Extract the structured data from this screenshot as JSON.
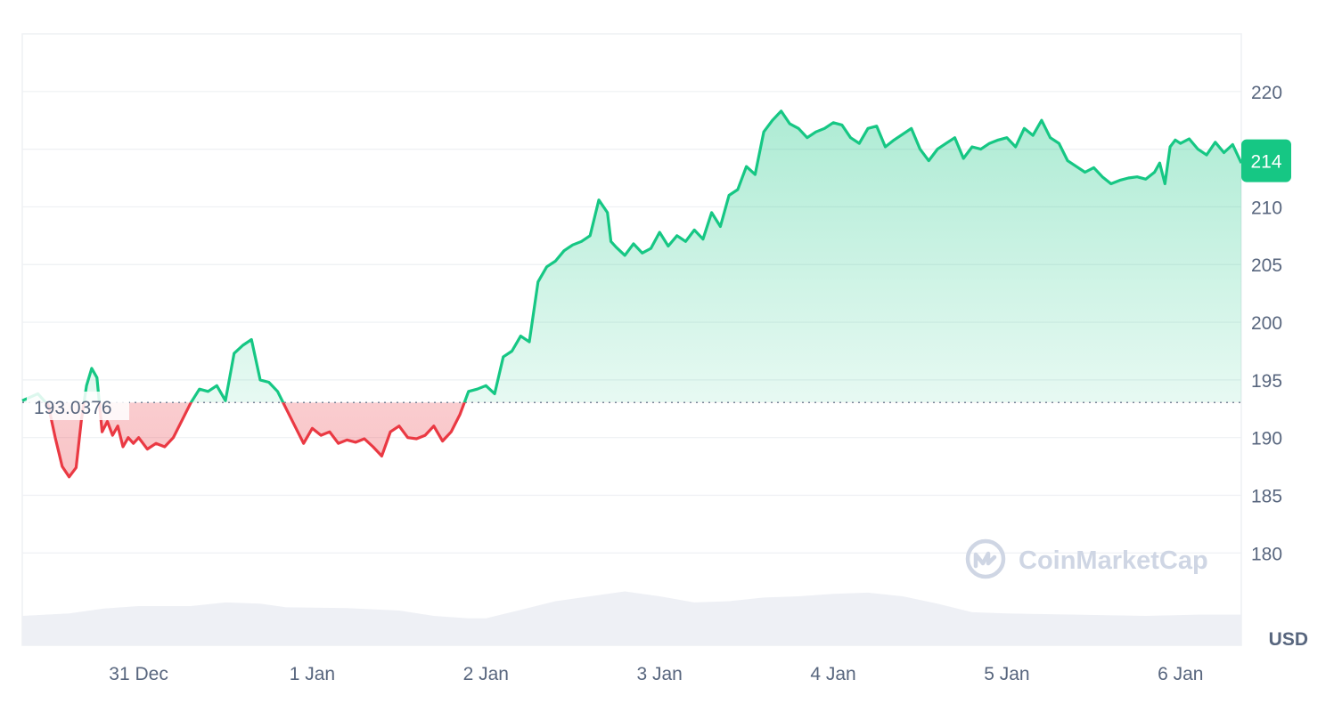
{
  "chart_data": {
    "type": "line",
    "baseline_value": 193.0376,
    "baseline_label": "193.0376",
    "current_price": 214,
    "current_price_label": "214",
    "unit": "USD",
    "ylim": [
      172,
      225
    ],
    "y_ticks": [
      220,
      215,
      210,
      205,
      200,
      195,
      190,
      185,
      180
    ],
    "y_tick_labels": [
      "220",
      "",
      "210",
      "205",
      "200",
      "195",
      "190",
      "185",
      "180"
    ],
    "x_range": [
      -0.67,
      6.35
    ],
    "x_ticks": [
      {
        "t": 0,
        "label": "31 Dec"
      },
      {
        "t": 1,
        "label": "1 Jan"
      },
      {
        "t": 2,
        "label": "2 Jan"
      },
      {
        "t": 3,
        "label": "3 Jan"
      },
      {
        "t": 4,
        "label": "4 Jan"
      },
      {
        "t": 5,
        "label": "5 Jan"
      },
      {
        "t": 6,
        "label": "6 Jan"
      }
    ],
    "price_series": [
      [
        -0.67,
        193.2
      ],
      [
        -0.58,
        193.8
      ],
      [
        -0.52,
        192.8
      ],
      [
        -0.48,
        190.0
      ],
      [
        -0.44,
        187.5
      ],
      [
        -0.4,
        186.6
      ],
      [
        -0.36,
        187.4
      ],
      [
        -0.33,
        191.5
      ],
      [
        -0.3,
        194.5
      ],
      [
        -0.27,
        196.0
      ],
      [
        -0.24,
        195.2
      ],
      [
        -0.21,
        190.5
      ],
      [
        -0.18,
        191.4
      ],
      [
        -0.15,
        190.2
      ],
      [
        -0.12,
        191.0
      ],
      [
        -0.09,
        189.2
      ],
      [
        -0.06,
        190.0
      ],
      [
        -0.03,
        189.5
      ],
      [
        0.0,
        190.0
      ],
      [
        0.05,
        189.0
      ],
      [
        0.1,
        189.5
      ],
      [
        0.15,
        189.2
      ],
      [
        0.2,
        190.0
      ],
      [
        0.25,
        191.5
      ],
      [
        0.3,
        193.0
      ],
      [
        0.35,
        194.2
      ],
      [
        0.4,
        194.0
      ],
      [
        0.45,
        194.5
      ],
      [
        0.5,
        193.2
      ],
      [
        0.55,
        197.3
      ],
      [
        0.6,
        198.0
      ],
      [
        0.65,
        198.5
      ],
      [
        0.7,
        195.0
      ],
      [
        0.75,
        194.8
      ],
      [
        0.8,
        194.0
      ],
      [
        0.85,
        192.5
      ],
      [
        0.9,
        191.0
      ],
      [
        0.95,
        189.5
      ],
      [
        1.0,
        190.8
      ],
      [
        1.05,
        190.2
      ],
      [
        1.1,
        190.5
      ],
      [
        1.15,
        189.5
      ],
      [
        1.2,
        189.8
      ],
      [
        1.25,
        189.6
      ],
      [
        1.3,
        189.9
      ],
      [
        1.35,
        189.2
      ],
      [
        1.4,
        188.4
      ],
      [
        1.45,
        190.5
      ],
      [
        1.5,
        191.0
      ],
      [
        1.55,
        190.0
      ],
      [
        1.6,
        189.9
      ],
      [
        1.65,
        190.2
      ],
      [
        1.7,
        191.0
      ],
      [
        1.75,
        189.7
      ],
      [
        1.8,
        190.5
      ],
      [
        1.85,
        192.0
      ],
      [
        1.9,
        194.0
      ],
      [
        1.95,
        194.2
      ],
      [
        2.0,
        194.5
      ],
      [
        2.05,
        193.8
      ],
      [
        2.1,
        197.0
      ],
      [
        2.15,
        197.5
      ],
      [
        2.2,
        198.8
      ],
      [
        2.25,
        198.3
      ],
      [
        2.3,
        203.5
      ],
      [
        2.35,
        204.8
      ],
      [
        2.4,
        205.3
      ],
      [
        2.45,
        206.2
      ],
      [
        2.5,
        206.7
      ],
      [
        2.55,
        207.0
      ],
      [
        2.6,
        207.5
      ],
      [
        2.65,
        210.6
      ],
      [
        2.7,
        209.5
      ],
      [
        2.72,
        207.0
      ],
      [
        2.75,
        206.5
      ],
      [
        2.8,
        205.8
      ],
      [
        2.85,
        206.8
      ],
      [
        2.9,
        206.0
      ],
      [
        2.95,
        206.4
      ],
      [
        3.0,
        207.8
      ],
      [
        3.05,
        206.6
      ],
      [
        3.1,
        207.5
      ],
      [
        3.15,
        207.0
      ],
      [
        3.2,
        208.0
      ],
      [
        3.25,
        207.2
      ],
      [
        3.3,
        209.5
      ],
      [
        3.35,
        208.3
      ],
      [
        3.4,
        211.0
      ],
      [
        3.45,
        211.5
      ],
      [
        3.5,
        213.5
      ],
      [
        3.55,
        212.8
      ],
      [
        3.6,
        216.5
      ],
      [
        3.65,
        217.5
      ],
      [
        3.7,
        218.3
      ],
      [
        3.75,
        217.2
      ],
      [
        3.8,
        216.8
      ],
      [
        3.85,
        216.0
      ],
      [
        3.9,
        216.5
      ],
      [
        3.95,
        216.8
      ],
      [
        4.0,
        217.3
      ],
      [
        4.05,
        217.1
      ],
      [
        4.1,
        216.0
      ],
      [
        4.15,
        215.5
      ],
      [
        4.2,
        216.8
      ],
      [
        4.25,
        217.0
      ],
      [
        4.3,
        215.2
      ],
      [
        4.35,
        215.8
      ],
      [
        4.4,
        216.3
      ],
      [
        4.45,
        216.8
      ],
      [
        4.5,
        215.0
      ],
      [
        4.55,
        214.0
      ],
      [
        4.6,
        215.0
      ],
      [
        4.65,
        215.5
      ],
      [
        4.7,
        216.0
      ],
      [
        4.75,
        214.2
      ],
      [
        4.8,
        215.2
      ],
      [
        4.85,
        215.0
      ],
      [
        4.9,
        215.5
      ],
      [
        4.95,
        215.8
      ],
      [
        5.0,
        216.0
      ],
      [
        5.05,
        215.2
      ],
      [
        5.1,
        216.8
      ],
      [
        5.15,
        216.2
      ],
      [
        5.2,
        217.5
      ],
      [
        5.25,
        216.0
      ],
      [
        5.3,
        215.5
      ],
      [
        5.35,
        214.0
      ],
      [
        5.4,
        213.5
      ],
      [
        5.45,
        213.0
      ],
      [
        5.5,
        213.4
      ],
      [
        5.55,
        212.6
      ],
      [
        5.6,
        212.0
      ],
      [
        5.65,
        212.3
      ],
      [
        5.7,
        212.5
      ],
      [
        5.75,
        212.6
      ],
      [
        5.8,
        212.4
      ],
      [
        5.85,
        213.0
      ],
      [
        5.88,
        213.8
      ],
      [
        5.91,
        212.0
      ],
      [
        5.94,
        215.2
      ],
      [
        5.97,
        215.8
      ],
      [
        6.0,
        215.5
      ],
      [
        6.05,
        215.9
      ],
      [
        6.1,
        215.0
      ],
      [
        6.15,
        214.5
      ],
      [
        6.2,
        215.6
      ],
      [
        6.25,
        214.7
      ],
      [
        6.3,
        215.4
      ],
      [
        6.35,
        213.8
      ]
    ],
    "volume_series": [
      [
        -0.67,
        0.12
      ],
      [
        -0.4,
        0.13
      ],
      [
        -0.2,
        0.15
      ],
      [
        0.0,
        0.16
      ],
      [
        0.3,
        0.16
      ],
      [
        0.5,
        0.175
      ],
      [
        0.7,
        0.17
      ],
      [
        0.85,
        0.155
      ],
      [
        1.2,
        0.152
      ],
      [
        1.5,
        0.142
      ],
      [
        1.7,
        0.12
      ],
      [
        1.9,
        0.11
      ],
      [
        2.0,
        0.11
      ],
      [
        2.2,
        0.145
      ],
      [
        2.4,
        0.18
      ],
      [
        2.6,
        0.2
      ],
      [
        2.8,
        0.22
      ],
      [
        3.0,
        0.2
      ],
      [
        3.2,
        0.175
      ],
      [
        3.4,
        0.18
      ],
      [
        3.6,
        0.195
      ],
      [
        3.8,
        0.2
      ],
      [
        4.0,
        0.21
      ],
      [
        4.2,
        0.215
      ],
      [
        4.4,
        0.2
      ],
      [
        4.6,
        0.17
      ],
      [
        4.8,
        0.135
      ],
      [
        5.0,
        0.13
      ],
      [
        5.4,
        0.125
      ],
      [
        5.8,
        0.12
      ],
      [
        6.1,
        0.125
      ],
      [
        6.35,
        0.125
      ]
    ],
    "series_colors": {
      "up": "#16c784",
      "down": "#ea3943"
    },
    "grid": true,
    "volume_color": "#eef0f5"
  },
  "watermark": {
    "text": "CoinMarketCap"
  }
}
